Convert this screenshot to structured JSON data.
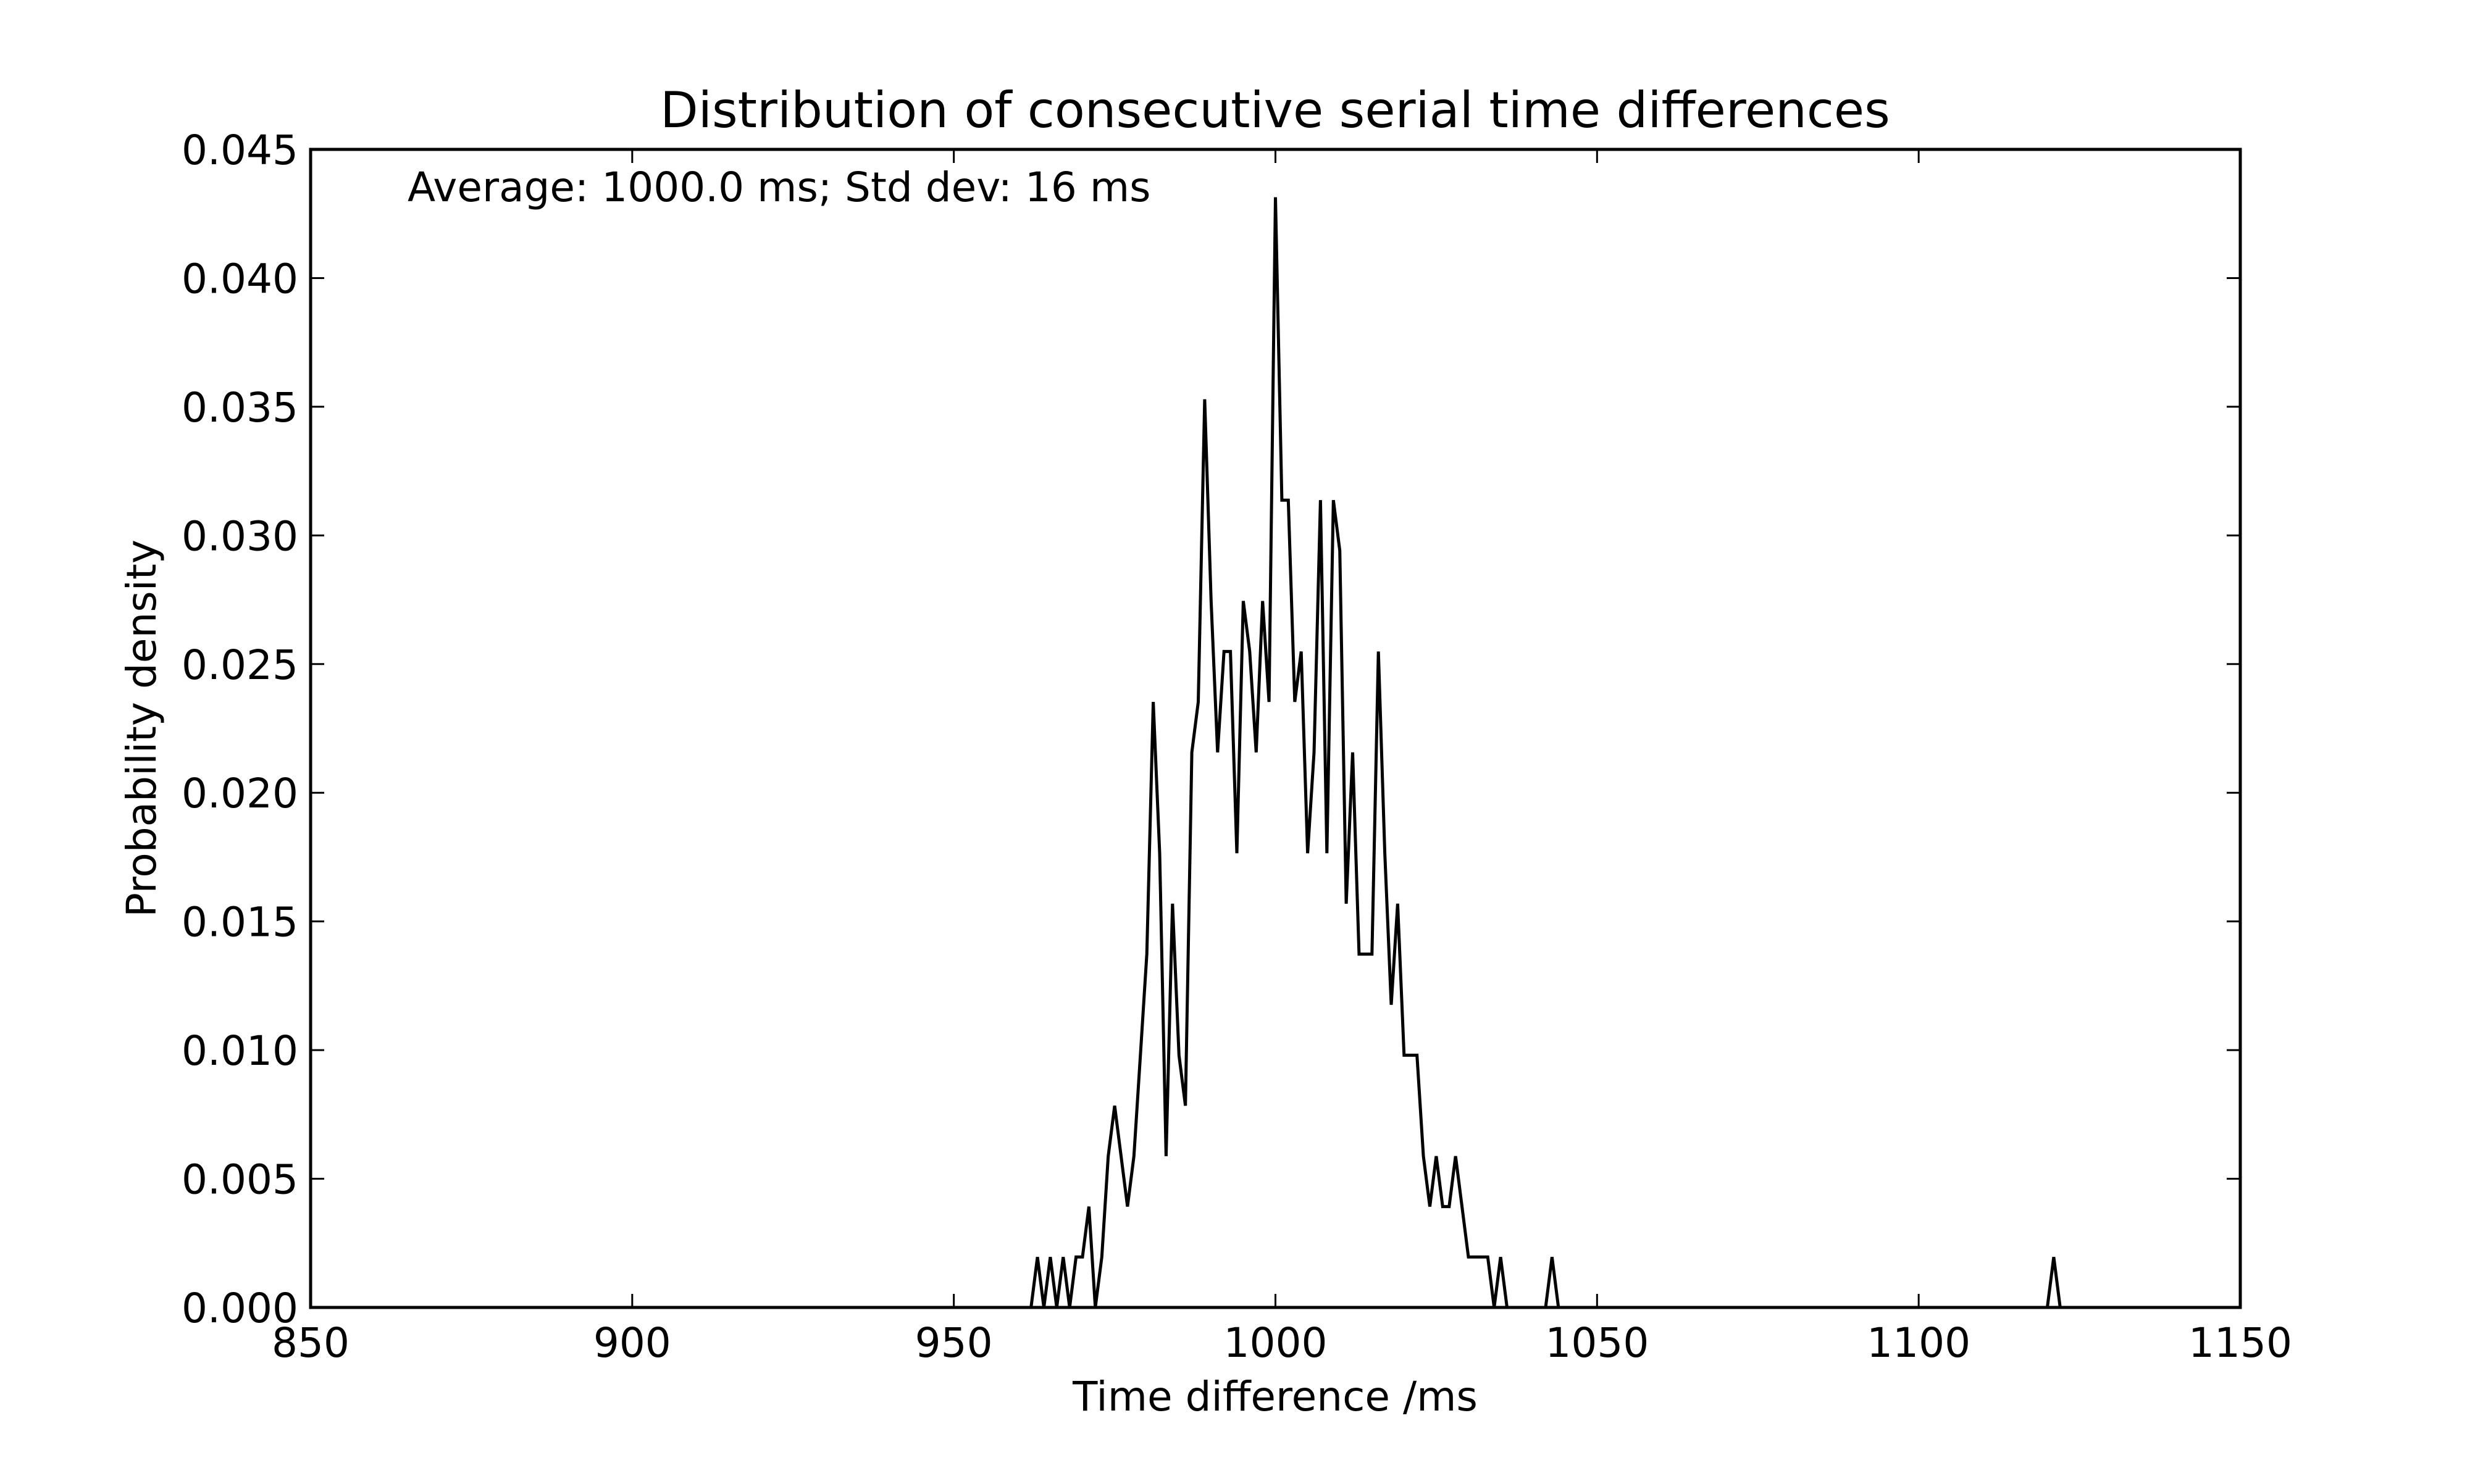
{
  "chart_data": {
    "type": "line",
    "title": "Distribution of consecutive serial time differences",
    "xlabel": "Time difference /ms",
    "ylabel": "Probability density",
    "annotation": "Average: 1000.0 ms;  Std dev: 16 ms",
    "xlim": [
      850,
      1150
    ],
    "ylim": [
      0,
      0.045
    ],
    "x_ticks": [
      "850",
      "900",
      "950",
      "1000",
      "1050",
      "1100",
      "1150"
    ],
    "y_ticks": [
      "0.000",
      "0.005",
      "0.010",
      "0.015",
      "0.020",
      "0.025",
      "0.030",
      "0.035",
      "0.040",
      "0.045"
    ],
    "grid": false,
    "line_color": "#000000",
    "series": [
      {
        "x": [
          962,
          963,
          964,
          965,
          966,
          967,
          968,
          969,
          970,
          971,
          972,
          973,
          974,
          975,
          976,
          977,
          978,
          979,
          980,
          981,
          982,
          983,
          984,
          985,
          986,
          987,
          988,
          989,
          990,
          991,
          992,
          993,
          994,
          995,
          996,
          997,
          998,
          999,
          1000,
          1001,
          1002,
          1003,
          1004,
          1005,
          1006,
          1007,
          1008,
          1009,
          1010,
          1011,
          1012,
          1013,
          1014,
          1015,
          1016,
          1017,
          1018,
          1019,
          1020,
          1021,
          1022,
          1023,
          1024,
          1025,
          1026,
          1027,
          1028,
          1029,
          1030,
          1031,
          1032,
          1033,
          1034,
          1035,
          1036,
          1037,
          1038,
          1039,
          1040,
          1041,
          1042,
          1043,
          1044,
          1045,
          1120,
          1121,
          1122,
          1123
        ],
        "y": [
          0,
          0.00196,
          0,
          0.00196,
          0,
          0.00196,
          0,
          0.00196,
          0.00196,
          0.00392,
          0,
          0.00196,
          0.00588,
          0.00784,
          0.00588,
          0.00392,
          0.00588,
          0.0098,
          0.01373,
          0.02353,
          0.01765,
          0.00588,
          0.01569,
          0.0098,
          0.00784,
          0.02157,
          0.02353,
          0.03529,
          0.02745,
          0.02157,
          0.02549,
          0.02549,
          0.01765,
          0.02745,
          0.02549,
          0.02157,
          0.02745,
          0.02353,
          0.04314,
          0.03137,
          0.03137,
          0.02353,
          0.02549,
          0.01765,
          0.02157,
          0.03137,
          0.01765,
          0.03137,
          0.02941,
          0.01569,
          0.02157,
          0.01373,
          0.01373,
          0.01373,
          0.02549,
          0.01765,
          0.01176,
          0.01569,
          0.0098,
          0.0098,
          0.0098,
          0.00588,
          0.00392,
          0.00588,
          0.00392,
          0.00392,
          0.00588,
          0.00392,
          0.00196,
          0.00196,
          0.00196,
          0.00196,
          0,
          0.00196,
          0,
          0,
          0,
          0,
          0,
          0,
          0,
          0.00196,
          0,
          0,
          0,
          0.00196,
          0,
          0
        ]
      }
    ]
  }
}
